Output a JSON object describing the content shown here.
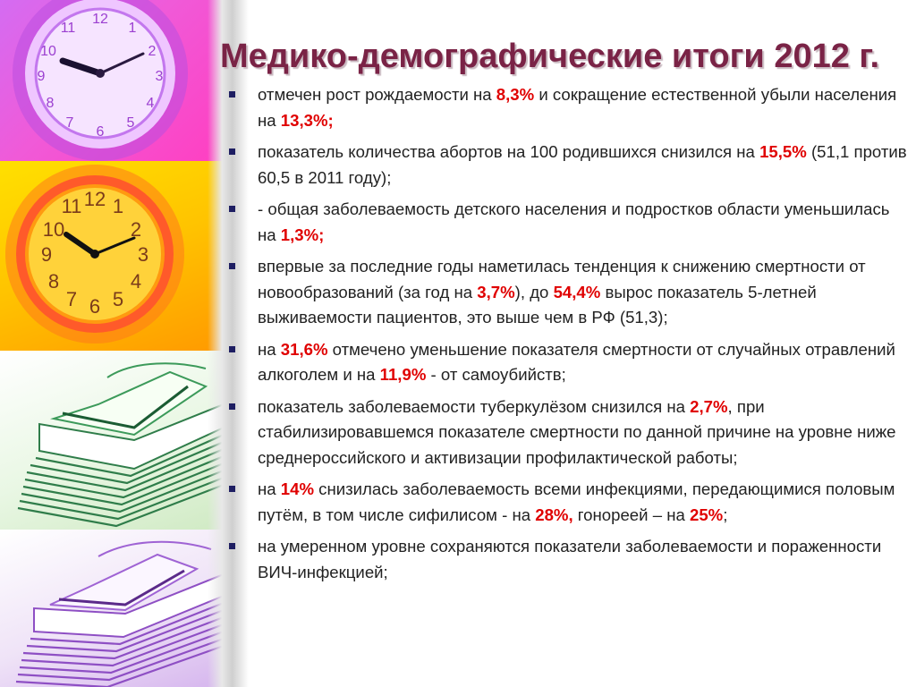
{
  "slide": {
    "title": "Медико-демографические итоги 2012 г.",
    "colors": {
      "title": "#7a2346",
      "highlight": "#e00000",
      "bullet_marker": "#1e1e62",
      "text": "#222222"
    },
    "bullets": [
      [
        {
          "t": "отмечен рост рождаемости на ",
          "hl": false
        },
        {
          "t": "8,3%",
          "hl": true
        },
        {
          "t": " и сокращение естественной убыли населения на ",
          "hl": false
        },
        {
          "t": "13,3%;",
          "hl": true
        }
      ],
      [
        {
          "t": " показатель количества абортов на 100 родившихся снизился на ",
          "hl": false
        },
        {
          "t": "15,5%",
          "hl": true
        },
        {
          "t": " (51,1 против 60,5 в 2011 году);",
          "hl": false
        }
      ],
      [
        {
          "t": "- общая заболеваемость детского населения и подростков области уменьшилась на ",
          "hl": false
        },
        {
          "t": "1,3%;",
          "hl": true
        }
      ],
      [
        {
          "t": " впервые за последние годы наметилась тенденция к снижению смертности от новообразований (за год на ",
          "hl": false
        },
        {
          "t": "3,7%",
          "hl": true
        },
        {
          "t": "), до ",
          "hl": false
        },
        {
          "t": "54,4%",
          "hl": true
        },
        {
          "t": " вырос показатель 5-летней выживаемости пациентов, это выше чем в РФ (51,3);",
          "hl": false
        }
      ],
      [
        {
          "t": " на ",
          "hl": false
        },
        {
          "t": "31,6%",
          "hl": true
        },
        {
          "t": " отмечено уменьшение показателя смертности от случайных отравлений алкоголем и на ",
          "hl": false
        },
        {
          "t": "11,9%",
          "hl": true
        },
        {
          "t": " - от самоубийств;",
          "hl": false
        }
      ],
      [
        {
          "t": "показатель заболеваемости туберкулёзом снизился на ",
          "hl": false
        },
        {
          "t": "2,7%",
          "hl": true
        },
        {
          "t": ", при стабилизировавшемся показателе смертности по данной причине на уровне ниже среднероссийского и активизации профилактической работы;",
          "hl": false
        }
      ],
      [
        {
          "t": " на ",
          "hl": false
        },
        {
          "t": "14%",
          "hl": true
        },
        {
          "t": " снизилась заболеваемость всеми инфекциями, передающимися половым путём, в том числе сифилисом - на ",
          "hl": false
        },
        {
          "t": "28%,",
          "hl": true
        },
        {
          "t": " гонореей – на ",
          "hl": false
        },
        {
          "t": "25%",
          "hl": true
        },
        {
          "t": ";",
          "hl": false
        }
      ],
      [
        {
          "t": " на умеренном уровне сохраняются показатели заболеваемости и пораженности ВИЧ-инфекцией;",
          "hl": false
        }
      ]
    ]
  },
  "images": [
    {
      "name": "clock-photo-purple",
      "colors": [
        "#d46cf2",
        "#ff3fc1"
      ]
    },
    {
      "name": "clock-photo-orange",
      "colors": [
        "#ffd800",
        "#ff6a2a"
      ]
    },
    {
      "name": "paper-stack-photo-green",
      "colors": [
        "#ffffff",
        "#2f7d4a"
      ]
    },
    {
      "name": "paper-stack-photo-violet",
      "colors": [
        "#ffffff",
        "#8e4fc4"
      ]
    }
  ]
}
